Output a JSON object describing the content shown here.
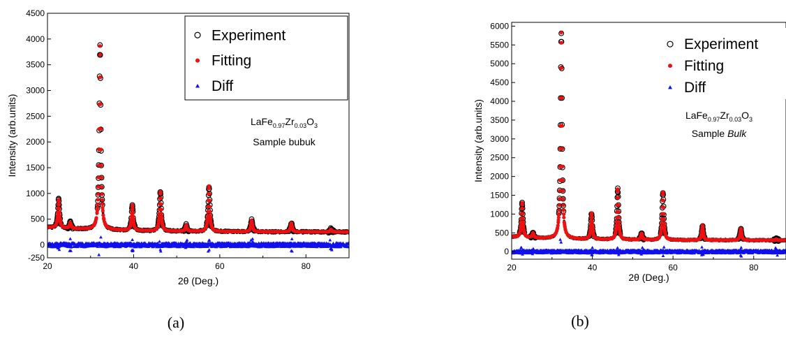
{
  "chart_data": [
    {
      "type": "scatter",
      "panel_label": "(a)",
      "xlabel": "2θ (Deg.)",
      "ylabel": "Intensity (arb.units)",
      "xlim": [
        20,
        90
      ],
      "ylim": [
        -250,
        4500
      ],
      "xticks": [
        20,
        40,
        60,
        80
      ],
      "yticks": [
        0,
        500,
        1000,
        1500,
        2000,
        2500,
        3000,
        3500,
        4000,
        4500
      ],
      "extra_ytick_label": "-250",
      "legend_position": "top-right",
      "annotation": {
        "compound_base": "LaFe",
        "sub1": "0.97",
        "mid": "Zr",
        "sub2": "0.03",
        "end": "O",
        "sub3": "3",
        "line2_prefix": "Sample bubuk",
        "line2_emph": ""
      },
      "baseline": 250,
      "peaks": [
        {
          "x": 22.6,
          "y": 800
        },
        {
          "x": 25.3,
          "y": 360
        },
        {
          "x": 32.2,
          "y": 3820
        },
        {
          "x": 39.7,
          "y": 740
        },
        {
          "x": 46.2,
          "y": 1010
        },
        {
          "x": 52.2,
          "y": 370
        },
        {
          "x": 57.5,
          "y": 1130
        },
        {
          "x": 67.4,
          "y": 470
        },
        {
          "x": 76.6,
          "y": 420
        },
        {
          "x": 85.8,
          "y": 300
        }
      ],
      "series": [
        {
          "name": "Experiment",
          "marker": "open-circle",
          "color": "#000000"
        },
        {
          "name": "Fitting",
          "marker": "filled-circle",
          "color": "#ee1111"
        },
        {
          "name": "Diff",
          "marker": "triangle",
          "color": "#1111ee"
        }
      ]
    },
    {
      "type": "scatter",
      "panel_label": "(b)",
      "xlabel": "2θ (Deg.)",
      "ylabel": "Intensity (arb.units)",
      "xlim": [
        20,
        88
      ],
      "ylim": [
        -200,
        6100
      ],
      "xticks": [
        20,
        40,
        60,
        80
      ],
      "yticks": [
        0,
        500,
        1000,
        1500,
        2000,
        2500,
        3000,
        3500,
        4000,
        4500,
        5000,
        5500,
        6000
      ],
      "extra_ytick_label": "",
      "legend_position": "top-right",
      "annotation": {
        "compound_base": "LaFe",
        "sub1": "0.97",
        "mid": "Zr",
        "sub2": "0.03",
        "end": "O",
        "sub3": "3",
        "line2_prefix": "Sample ",
        "line2_emph": "Bulk"
      },
      "baseline": 300,
      "peaks": [
        {
          "x": 22.6,
          "y": 1220
        },
        {
          "x": 25.3,
          "y": 420
        },
        {
          "x": 32.3,
          "y": 5780
        },
        {
          "x": 39.8,
          "y": 990
        },
        {
          "x": 46.3,
          "y": 1640
        },
        {
          "x": 52.2,
          "y": 470
        },
        {
          "x": 57.5,
          "y": 1570
        },
        {
          "x": 67.3,
          "y": 690
        },
        {
          "x": 76.8,
          "y": 610
        },
        {
          "x": 85.6,
          "y": 330
        }
      ],
      "series": [
        {
          "name": "Experiment",
          "marker": "open-circle",
          "color": "#000000"
        },
        {
          "name": "Fitting",
          "marker": "filled-circle",
          "color": "#ee1111"
        },
        {
          "name": "Diff",
          "marker": "triangle",
          "color": "#1111ee"
        }
      ]
    }
  ]
}
